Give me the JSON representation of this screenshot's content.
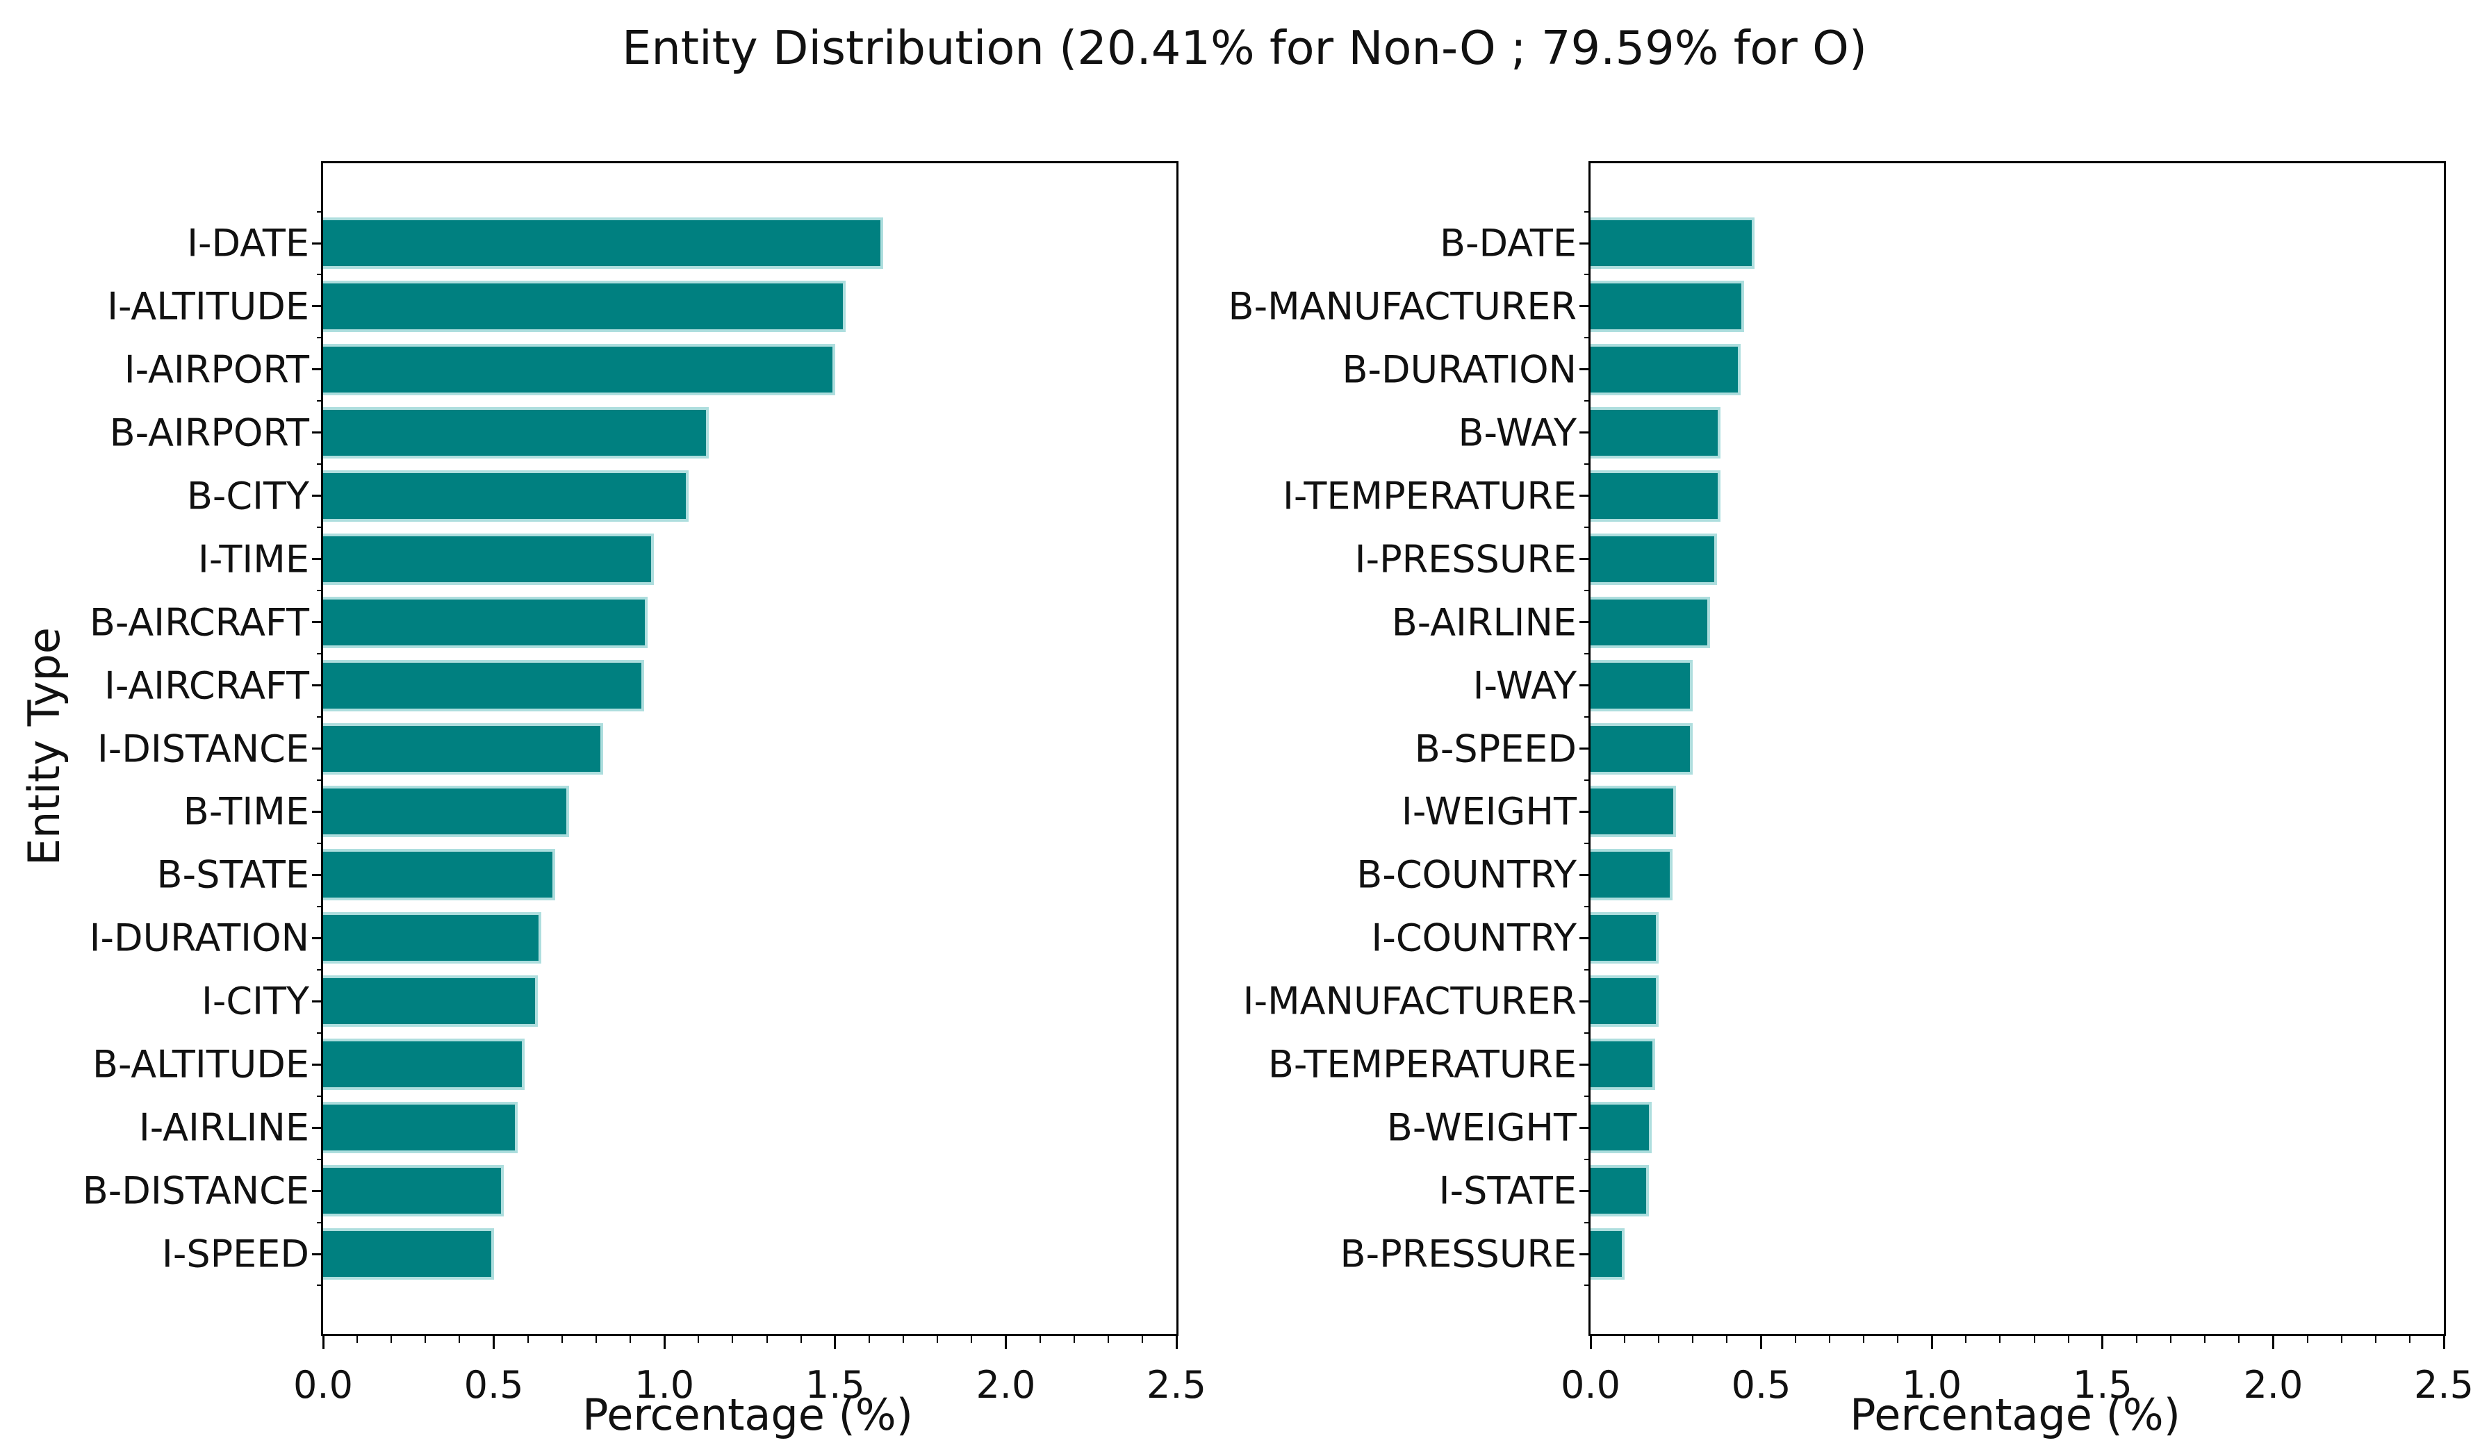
{
  "chart_data": {
    "type": "bar",
    "orientation": "horizontal",
    "title": "Entity Distribution (20.41% for Non-O ; 79.59% for O)",
    "ylabel": "Entity Type",
    "bar_color": "#008080",
    "bar_edge_color": "#aedede",
    "grid": false,
    "panels": [
      {
        "xlabel": "Percentage (%)",
        "xlim": [
          0,
          2.5
        ],
        "xtick_labels": [
          "0.0",
          "0.5",
          "1.0",
          "1.5",
          "2.0",
          "2.5"
        ],
        "xtick_values": [
          0.0,
          0.5,
          1.0,
          1.5,
          2.0,
          2.5
        ],
        "categories": [
          "I-DATE",
          "I-ALTITUDE",
          "I-AIRPORT",
          "B-AIRPORT",
          "B-CITY",
          "I-TIME",
          "B-AIRCRAFT",
          "I-AIRCRAFT",
          "I-DISTANCE",
          "B-TIME",
          "B-STATE",
          "I-DURATION",
          "I-CITY",
          "B-ALTITUDE",
          "I-AIRLINE",
          "B-DISTANCE",
          "I-SPEED"
        ],
        "values": [
          1.64,
          1.53,
          1.5,
          1.13,
          1.07,
          0.97,
          0.95,
          0.94,
          0.82,
          0.72,
          0.68,
          0.64,
          0.63,
          0.59,
          0.57,
          0.53,
          0.5
        ]
      },
      {
        "xlabel": "Percentage (%)",
        "xlim": [
          0,
          2.5
        ],
        "xtick_labels": [
          "0.0",
          "0.5",
          "1.0",
          "1.5",
          "2.0",
          "2.5"
        ],
        "xtick_values": [
          0.0,
          0.5,
          1.0,
          1.5,
          2.0,
          2.5
        ],
        "categories": [
          "B-DATE",
          "B-MANUFACTURER",
          "B-DURATION",
          "B-WAY",
          "I-TEMPERATURE",
          "I-PRESSURE",
          "B-AIRLINE",
          "I-WAY",
          "B-SPEED",
          "I-WEIGHT",
          "B-COUNTRY",
          "I-COUNTRY",
          "I-MANUFACTURER",
          "B-TEMPERATURE",
          "B-WEIGHT",
          "I-STATE",
          "B-PRESSURE"
        ],
        "values": [
          0.48,
          0.45,
          0.44,
          0.38,
          0.38,
          0.37,
          0.35,
          0.3,
          0.3,
          0.25,
          0.24,
          0.2,
          0.2,
          0.19,
          0.18,
          0.17,
          0.1
        ]
      }
    ]
  }
}
